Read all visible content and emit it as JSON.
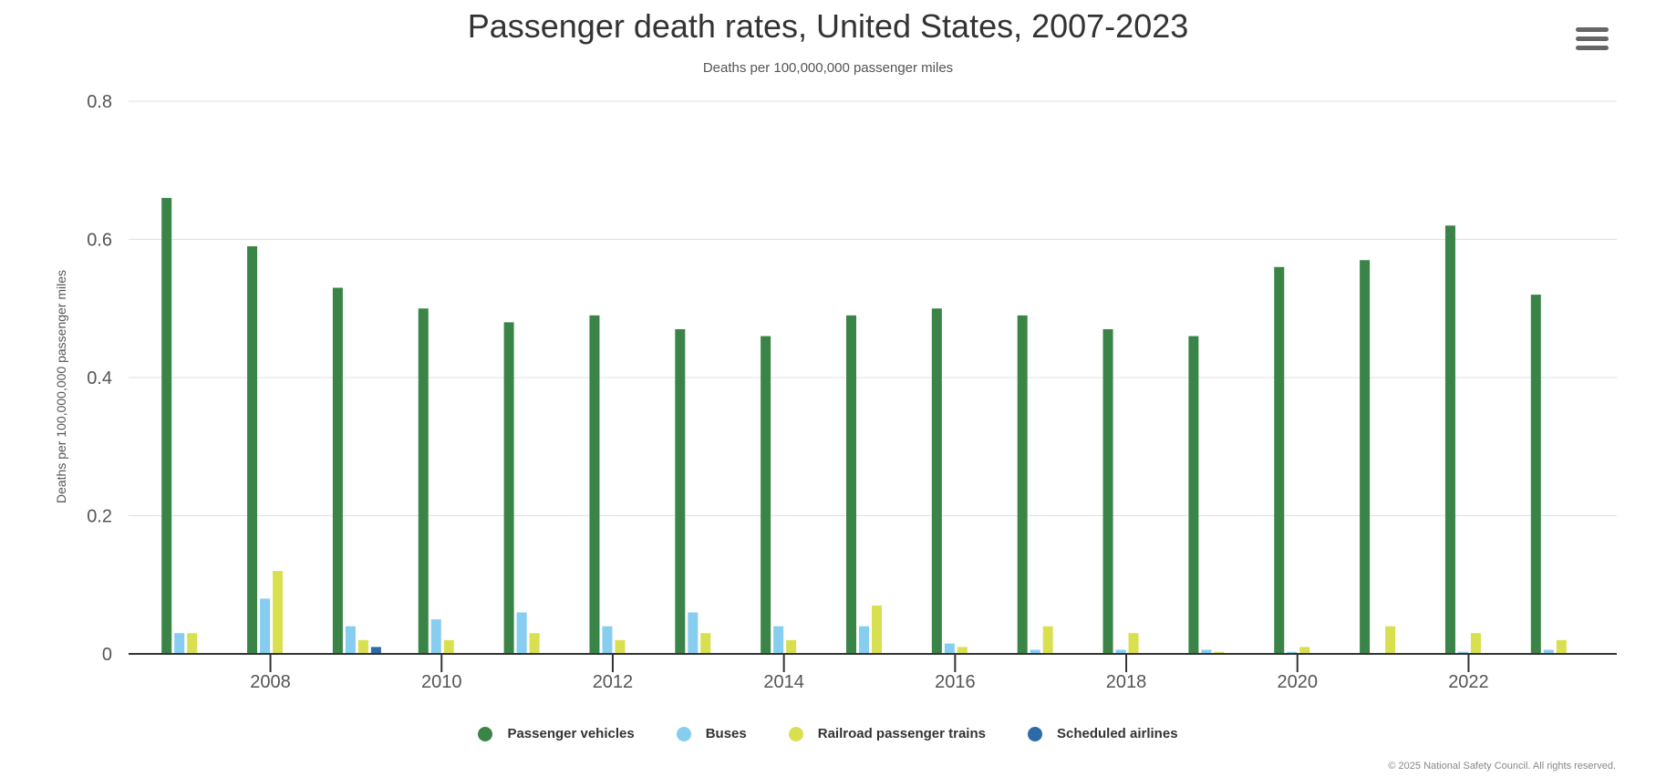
{
  "chart_data": {
    "type": "bar",
    "title": "Passenger death rates, United States, 2007-2023",
    "subtitle": "Deaths per 100,000,000 passenger miles",
    "ylabel": "Deaths per 100,000,000 passenger miles",
    "xlabel": "",
    "ylim": [
      0,
      0.8
    ],
    "yticks": [
      "0",
      "0.2",
      "0.4",
      "0.6",
      "0.8"
    ],
    "xticks": [
      "2008",
      "2010",
      "2012",
      "2014",
      "2016",
      "2018",
      "2020",
      "2022"
    ],
    "categories": [
      2007,
      2008,
      2009,
      2010,
      2011,
      2012,
      2013,
      2014,
      2015,
      2016,
      2017,
      2018,
      2019,
      2020,
      2021,
      2022,
      2023
    ],
    "grid": true,
    "legend_position": "bottom",
    "series": [
      {
        "name": "Passenger vehicles",
        "color": "#3a8447",
        "values": [
          0.66,
          0.59,
          0.53,
          0.5,
          0.48,
          0.49,
          0.47,
          0.46,
          0.49,
          0.5,
          0.49,
          0.47,
          0.46,
          0.56,
          0.57,
          0.62,
          0.52
        ]
      },
      {
        "name": "Buses",
        "color": "#86cdf0",
        "values": [
          0.03,
          0.08,
          0.04,
          0.05,
          0.06,
          0.04,
          0.06,
          0.04,
          0.04,
          0.015,
          0.006,
          0.006,
          0.006,
          0.003,
          0,
          0.003,
          0.006
        ]
      },
      {
        "name": "Railroad passenger trains",
        "color": "#d8e050",
        "values": [
          0.03,
          0.12,
          0.02,
          0.02,
          0.03,
          0.02,
          0.03,
          0.02,
          0.07,
          0.01,
          0.04,
          0.03,
          0.003,
          0.01,
          0.04,
          0.03,
          0.02
        ]
      },
      {
        "name": "Scheduled airlines",
        "color": "#2f6aa8",
        "values": [
          0,
          0,
          0.01,
          0,
          0,
          0,
          0,
          0,
          0,
          0,
          0,
          0,
          0,
          0,
          0,
          0,
          0
        ]
      }
    ]
  },
  "credit": "© 2025 National Safety Council. All rights reserved.",
  "menu_icon": "hamburger-menu-icon"
}
